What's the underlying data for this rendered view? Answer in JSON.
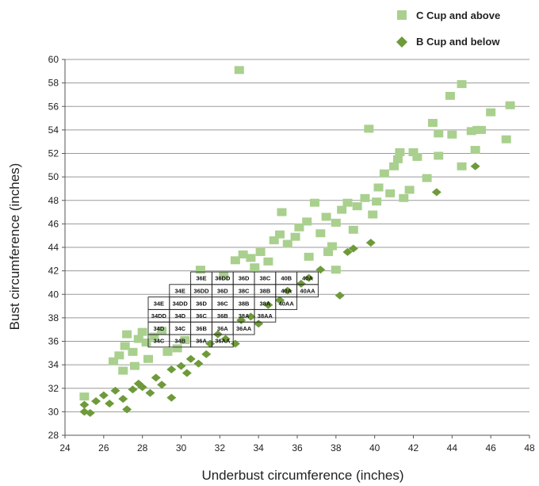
{
  "chart_data": {
    "type": "scatter",
    "title": "",
    "xlabel": "Underbust circumference (inches)",
    "ylabel": "Bust circumference (inches)",
    "xlim": [
      24,
      48
    ],
    "ylim": [
      28,
      60
    ],
    "xticks": [
      24,
      26,
      28,
      30,
      32,
      34,
      36,
      38,
      40,
      42,
      44,
      46,
      48
    ],
    "yticks": [
      28,
      30,
      32,
      34,
      36,
      38,
      40,
      42,
      44,
      46,
      48,
      50,
      52,
      54,
      56,
      58,
      60
    ],
    "grid": "horizontal",
    "legend_position": "top-right",
    "series": [
      {
        "name": "C Cup and above",
        "marker": "square",
        "color": "#a9d08e",
        "points": [
          [
            25,
            31.3
          ],
          [
            26.5,
            34.3
          ],
          [
            26.8,
            34.8
          ],
          [
            27.2,
            36.6
          ],
          [
            27.1,
            35.6
          ],
          [
            27.5,
            35.1
          ],
          [
            27.8,
            36.2
          ],
          [
            28,
            36.8
          ],
          [
            28.2,
            35.9
          ],
          [
            28.6,
            36.4
          ],
          [
            29,
            36.9
          ],
          [
            27,
            33.5
          ],
          [
            27.6,
            33.9
          ],
          [
            28.3,
            34.5
          ],
          [
            29.3,
            35.1
          ],
          [
            29.8,
            35.4
          ],
          [
            30.2,
            36.1
          ],
          [
            31,
            42.1
          ],
          [
            32.2,
            41.6
          ],
          [
            32.8,
            42.9
          ],
          [
            33.2,
            43.4
          ],
          [
            33.6,
            43.1
          ],
          [
            34.1,
            43.6
          ],
          [
            34.5,
            42.8
          ],
          [
            35.1,
            45.1
          ],
          [
            35.2,
            47
          ],
          [
            35.5,
            44.3
          ],
          [
            35.9,
            44.9
          ],
          [
            36.1,
            45.7
          ],
          [
            36.5,
            46.2
          ],
          [
            36.9,
            47.8
          ],
          [
            37.2,
            45.2
          ],
          [
            37.5,
            46.6
          ],
          [
            37.8,
            44.1
          ],
          [
            38,
            46.1
          ],
          [
            38.3,
            47.2
          ],
          [
            38.6,
            47.8
          ],
          [
            38.9,
            45.5
          ],
          [
            39.1,
            47.5
          ],
          [
            39.5,
            48.2
          ],
          [
            39.9,
            46.8
          ],
          [
            40.1,
            47.9
          ],
          [
            40.2,
            49.1
          ],
          [
            40.5,
            50.3
          ],
          [
            40.8,
            48.6
          ],
          [
            41,
            50.9
          ],
          [
            41.2,
            51.5
          ],
          [
            41.3,
            52.1
          ],
          [
            41.5,
            48.2
          ],
          [
            41.8,
            48.9
          ],
          [
            42,
            52.1
          ],
          [
            42.2,
            51.7
          ],
          [
            42.7,
            49.9
          ],
          [
            43,
            54.6
          ],
          [
            43.3,
            53.7
          ],
          [
            43.3,
            51.8
          ],
          [
            43.9,
            56.9
          ],
          [
            44,
            53.6
          ],
          [
            44.5,
            57.9
          ],
          [
            45,
            53.9
          ],
          [
            45.3,
            54
          ],
          [
            45.5,
            54
          ],
          [
            45.2,
            52.3
          ],
          [
            46,
            55.5
          ],
          [
            46.8,
            53.2
          ],
          [
            47,
            56.1
          ],
          [
            44.5,
            50.9
          ],
          [
            39.7,
            54.1
          ],
          [
            33,
            59.1
          ],
          [
            38,
            42.1
          ],
          [
            36.6,
            43.2
          ],
          [
            34.8,
            44.6
          ],
          [
            33.8,
            42.3
          ],
          [
            37.6,
            43.6
          ]
        ]
      },
      {
        "name": "B Cup and below",
        "marker": "diamond",
        "color": "#6e9a3a",
        "points": [
          [
            25,
            30
          ],
          [
            25.3,
            29.9
          ],
          [
            25.6,
            30.9
          ],
          [
            25,
            30.6
          ],
          [
            26,
            31.4
          ],
          [
            26.3,
            30.7
          ],
          [
            26.6,
            31.8
          ],
          [
            27,
            31.1
          ],
          [
            27.2,
            30.2
          ],
          [
            27.5,
            31.9
          ],
          [
            27.8,
            32.4
          ],
          [
            28,
            32.1
          ],
          [
            28.4,
            31.6
          ],
          [
            28.7,
            32.9
          ],
          [
            29,
            32.3
          ],
          [
            29.5,
            31.2
          ],
          [
            29.5,
            33.6
          ],
          [
            30,
            33.9
          ],
          [
            30.3,
            33.3
          ],
          [
            30.5,
            34.5
          ],
          [
            30.9,
            34.1
          ],
          [
            31.3,
            34.9
          ],
          [
            31.5,
            35.8
          ],
          [
            31.9,
            36.6
          ],
          [
            32.3,
            36.2
          ],
          [
            33.1,
            37.8
          ],
          [
            33.6,
            38.1
          ],
          [
            34.5,
            39.1
          ],
          [
            35.1,
            39.5
          ],
          [
            35.5,
            40.3
          ],
          [
            36.2,
            40.9
          ],
          [
            36.6,
            41.4
          ],
          [
            38.2,
            39.9
          ],
          [
            38.6,
            43.6
          ],
          [
            38.9,
            43.9
          ],
          [
            39.8,
            44.4
          ],
          [
            43.2,
            48.7
          ],
          [
            45.2,
            50.9
          ],
          [
            37.2,
            42.1
          ],
          [
            34,
            37.5
          ],
          [
            32.8,
            35.8
          ]
        ]
      }
    ],
    "size_grid": [
      {
        "row": 0,
        "cells": [
          "36E",
          "36DD",
          "36D",
          "38C",
          "40B",
          "40A"
        ],
        "col_start": 2
      },
      {
        "row": 1,
        "cells": [
          "34E",
          "36DD",
          "36D",
          "38C",
          "38B",
          "40A",
          "40AA"
        ],
        "col_start": 1
      },
      {
        "row": 2,
        "cells": [
          "34E",
          "34DD",
          "36D",
          "36C",
          "38B",
          "38A",
          "40AA"
        ],
        "col_start": 0
      },
      {
        "row": 3,
        "cells": [
          "34DD",
          "34D",
          "36C",
          "36B",
          "38A",
          "38AA"
        ],
        "col_start": 0
      },
      {
        "row": 4,
        "cells": [
          "34D",
          "34C",
          "36B",
          "36A",
          "36AA"
        ],
        "col_start": 0
      },
      {
        "row": 5,
        "cells": [
          "34C",
          "34B",
          "36A",
          "36AA"
        ],
        "col_start": 0
      }
    ]
  }
}
